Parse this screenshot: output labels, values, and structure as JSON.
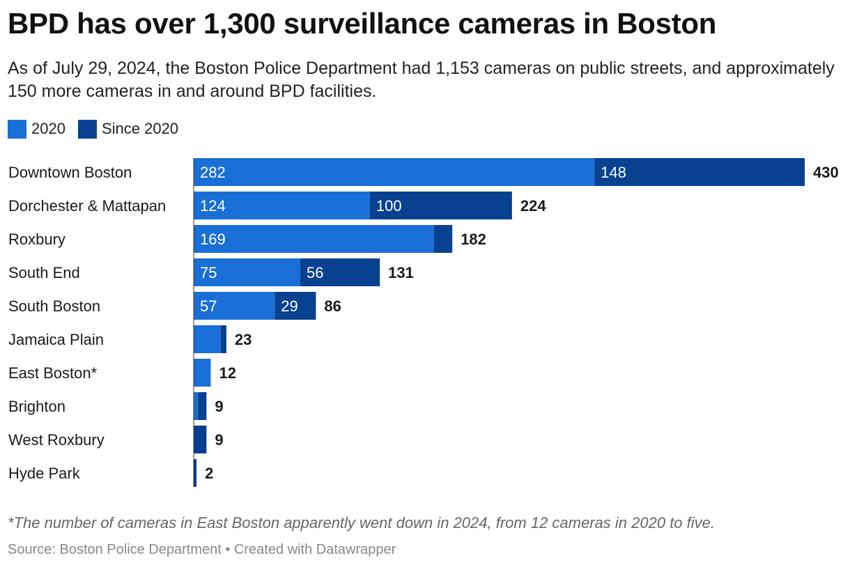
{
  "header": {
    "title": "BPD has over 1,300 surveillance cameras in Boston",
    "subtitle": "As of July 29, 2024, the Boston Police Department had 1,153 cameras on public streets, and approximately 150 more cameras in and around BPD facilities."
  },
  "legend": {
    "items": [
      {
        "label": "2020",
        "color": "#1a6fd6"
      },
      {
        "label": "Since 2020",
        "color": "#07418f"
      }
    ]
  },
  "chart_data": {
    "type": "bar",
    "orientation": "horizontal",
    "stacked": true,
    "categories": [
      "Downtown Boston",
      "Dorchester & Mattapan",
      "Roxbury",
      "South End",
      "South Boston",
      "Jamaica Plain",
      "East Boston*",
      "Brighton",
      "West Roxbury",
      "Hyde Park"
    ],
    "series": [
      {
        "name": "2020",
        "color": "#1a6fd6",
        "values": [
          282,
          124,
          169,
          75,
          57,
          19,
          12,
          3,
          0,
          0
        ],
        "labels": [
          "282",
          "124",
          "169",
          "75",
          "57",
          "",
          "",
          "",
          "",
          ""
        ]
      },
      {
        "name": "Since 2020",
        "color": "#07418f",
        "values": [
          148,
          100,
          13,
          56,
          29,
          4,
          0,
          6,
          9,
          2
        ],
        "labels": [
          "148",
          "100",
          "",
          "56",
          "29",
          "",
          "",
          "",
          "",
          ""
        ]
      }
    ],
    "totals": [
      430,
      224,
      182,
      131,
      86,
      23,
      12,
      9,
      9,
      2
    ],
    "total_labels": [
      "430",
      "224",
      "182",
      "131",
      "86",
      "23",
      "12",
      "9",
      "9",
      "2"
    ],
    "xlim": [
      0,
      430
    ],
    "title": "BPD has over 1,300 surveillance cameras in Boston",
    "xlabel": "",
    "ylabel": "",
    "grid": false,
    "legend_position": "top-left"
  },
  "footer": {
    "note": "*The number of cameras in East Boston apparently went down in 2024, from 12 cameras in 2020 to five.",
    "source": "Source: Boston Police Department • Created with Datawrapper"
  }
}
